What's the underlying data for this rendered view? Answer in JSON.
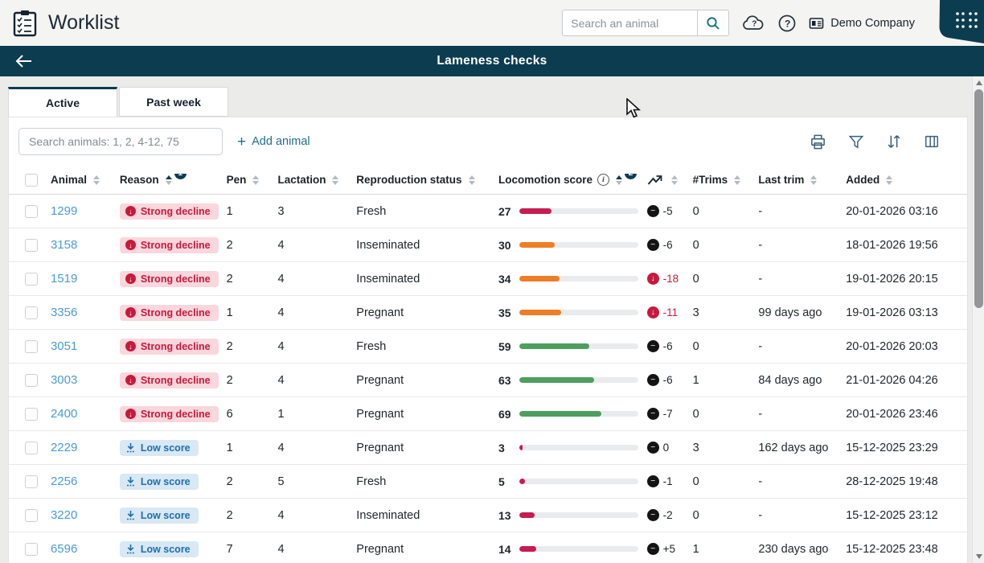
{
  "app": {
    "title": "Worklist",
    "search_placeholder": "Search an animal",
    "company": "Demo Company"
  },
  "banner": {
    "title": "Lameness checks"
  },
  "tabs": [
    {
      "label": "Active",
      "active": true
    },
    {
      "label": "Past week",
      "active": false
    }
  ],
  "toolbar": {
    "search_placeholder": "Search animals: 1, 2, 4-12, 75",
    "add_animal_label": "Add animal",
    "actions": [
      "printer-icon",
      "filter-icon",
      "sort-icon",
      "columns-icon"
    ]
  },
  "colors": {
    "banner_teal": "#0c3c50",
    "link_blue": "#4a9bd5",
    "strong_decline_red": "#c61a3d",
    "strong_decline_bg": "#f9d7dd",
    "low_score_blue": "#1d6fae",
    "low_score_bg": "#d8e8f4",
    "bar_crimson": "#c51d52",
    "bar_orange": "#ef7d26",
    "bar_green": "#4e9e60",
    "toolbar_icon": "#3a607a"
  },
  "table": {
    "columns": [
      {
        "key": "animal",
        "label": "Animal",
        "sort": "none"
      },
      {
        "key": "reason",
        "label": "Reason",
        "sort": "asc",
        "badge": "1"
      },
      {
        "key": "pen",
        "label": "Pen",
        "sort": "none"
      },
      {
        "key": "lactation",
        "label": "Lactation",
        "sort": "none"
      },
      {
        "key": "repro",
        "label": "Reproduction status",
        "sort": "none"
      },
      {
        "key": "loco",
        "label": "Locomotion score",
        "sort": "asc",
        "badge": "2",
        "info": true
      },
      {
        "key": "trend",
        "label": "",
        "sort": "none",
        "icon": "trend-icon"
      },
      {
        "key": "trims",
        "label": "#Trims",
        "sort": "none"
      },
      {
        "key": "last_trim",
        "label": "Last trim",
        "sort": "none"
      },
      {
        "key": "added",
        "label": "Added",
        "sort": "none"
      }
    ],
    "rows": [
      {
        "animal": "1299",
        "reason": "strong",
        "reason_label": "Strong decline",
        "pen": "1",
        "lactation": "3",
        "repro": "Fresh",
        "score": 27,
        "bar": "crimson",
        "trend": "-5",
        "trend_type": "neutral",
        "trims": "0",
        "last_trim": "-",
        "added": "20-01-2026 03:16"
      },
      {
        "animal": "3158",
        "reason": "strong",
        "reason_label": "Strong decline",
        "pen": "2",
        "lactation": "4",
        "repro": "Inseminated",
        "score": 30,
        "bar": "orange",
        "trend": "-6",
        "trend_type": "neutral",
        "trims": "0",
        "last_trim": "-",
        "added": "18-01-2026 19:56"
      },
      {
        "animal": "1519",
        "reason": "strong",
        "reason_label": "Strong decline",
        "pen": "2",
        "lactation": "4",
        "repro": "Inseminated",
        "score": 34,
        "bar": "orange",
        "trend": "-18",
        "trend_type": "down",
        "trims": "0",
        "last_trim": "-",
        "added": "19-01-2026 20:15"
      },
      {
        "animal": "3356",
        "reason": "strong",
        "reason_label": "Strong decline",
        "pen": "1",
        "lactation": "4",
        "repro": "Pregnant",
        "score": 35,
        "bar": "orange",
        "trend": "-11",
        "trend_type": "down",
        "trims": "3",
        "last_trim": "99 days ago",
        "added": "19-01-2026 03:13"
      },
      {
        "animal": "3051",
        "reason": "strong",
        "reason_label": "Strong decline",
        "pen": "2",
        "lactation": "4",
        "repro": "Fresh",
        "score": 59,
        "bar": "green",
        "trend": "-6",
        "trend_type": "neutral",
        "trims": "0",
        "last_trim": "-",
        "added": "20-01-2026 20:03"
      },
      {
        "animal": "3003",
        "reason": "strong",
        "reason_label": "Strong decline",
        "pen": "2",
        "lactation": "4",
        "repro": "Pregnant",
        "score": 63,
        "bar": "green",
        "trend": "-6",
        "trend_type": "neutral",
        "trims": "1",
        "last_trim": "84 days ago",
        "added": "21-01-2026 04:26"
      },
      {
        "animal": "2400",
        "reason": "strong",
        "reason_label": "Strong decline",
        "pen": "6",
        "lactation": "1",
        "repro": "Pregnant",
        "score": 69,
        "bar": "green",
        "trend": "-7",
        "trend_type": "neutral",
        "trims": "0",
        "last_trim": "-",
        "added": "20-01-2026 23:46"
      },
      {
        "animal": "2229",
        "reason": "low",
        "reason_label": "Low score",
        "pen": "1",
        "lactation": "4",
        "repro": "Pregnant",
        "score": 3,
        "bar": "crimson",
        "trend": "0",
        "trend_type": "neutral",
        "trims": "3",
        "last_trim": "162 days ago",
        "added": "15-12-2025 23:29"
      },
      {
        "animal": "2256",
        "reason": "low",
        "reason_label": "Low score",
        "pen": "2",
        "lactation": "5",
        "repro": "Fresh",
        "score": 5,
        "bar": "crimson",
        "trend": "-1",
        "trend_type": "neutral",
        "trims": "0",
        "last_trim": "-",
        "added": "28-12-2025 19:48"
      },
      {
        "animal": "3220",
        "reason": "low",
        "reason_label": "Low score",
        "pen": "2",
        "lactation": "4",
        "repro": "Inseminated",
        "score": 13,
        "bar": "crimson",
        "trend": "-2",
        "trend_type": "neutral",
        "trims": "0",
        "last_trim": "-",
        "added": "15-12-2025 23:12"
      },
      {
        "animal": "6596",
        "reason": "low",
        "reason_label": "Low score",
        "pen": "7",
        "lactation": "4",
        "repro": "Pregnant",
        "score": 14,
        "bar": "crimson",
        "trend": "+5",
        "trend_type": "neutral",
        "trims": "1",
        "last_trim": "230 days ago",
        "added": "15-12-2025 23:48"
      }
    ]
  }
}
